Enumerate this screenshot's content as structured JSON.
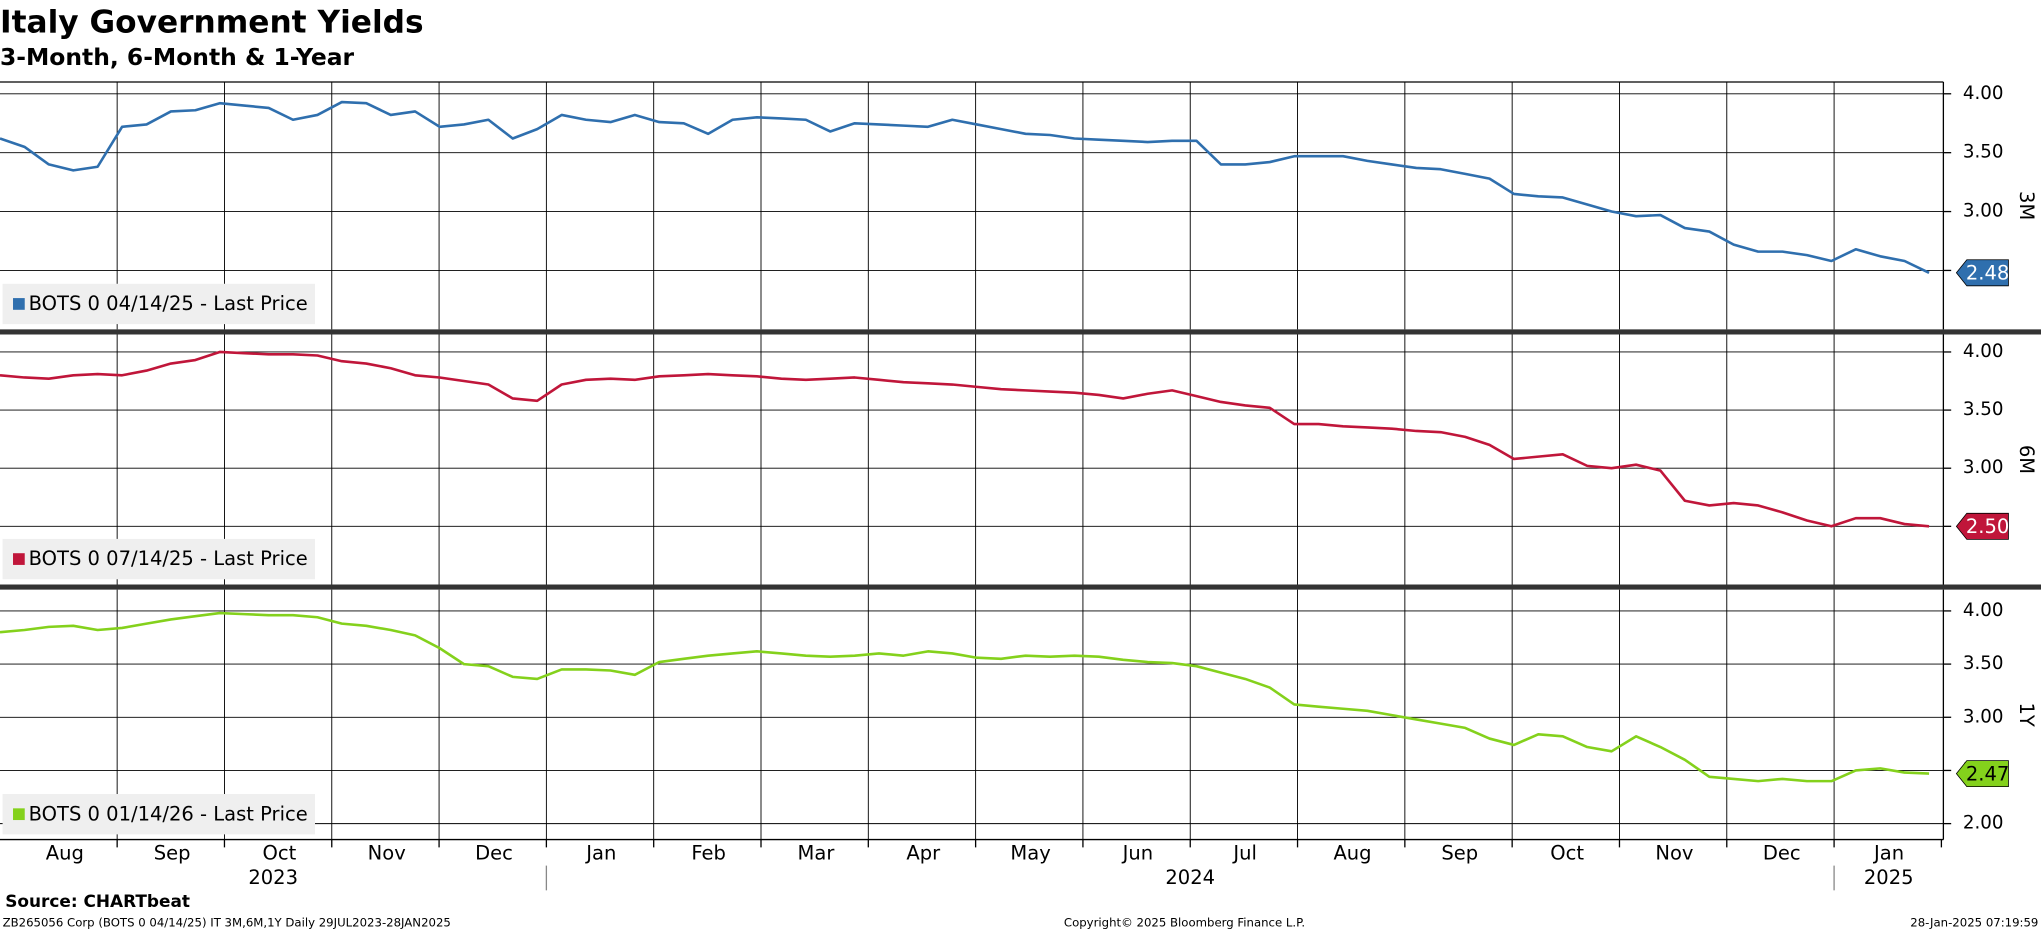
{
  "title": "Italy Government Yields",
  "subtitle": "3-Month, 6-Month & 1-Year",
  "x_axis": {
    "months": [
      "Aug",
      "Sep",
      "Oct",
      "Nov",
      "Dec",
      "Jan",
      "Feb",
      "Mar",
      "Apr",
      "May",
      "Jun",
      "Jul",
      "Aug",
      "Sep",
      "Oct",
      "Nov",
      "Dec",
      "Jan"
    ],
    "years": [
      "2023",
      "2024",
      "2025"
    ]
  },
  "chart_data": [
    {
      "type": "line",
      "axis_label": "3M",
      "last_label": "2.48",
      "ylim": [
        2.0,
        4.1
      ],
      "yticks": [
        {
          "value": 4,
          "label": "4.00"
        },
        {
          "value": 3.5,
          "label": "3.50"
        },
        {
          "value": 3,
          "label": "3.00"
        },
        {
          "value": 2.5,
          "label": "2.50"
        }
      ],
      "grid": true,
      "legend": "lower left",
      "series": [
        {
          "name": "BOTS 0 04/14/25 - Last Price",
          "color": "#2f6fae",
          "values": [
            3.62,
            3.55,
            3.4,
            3.35,
            3.38,
            3.72,
            3.74,
            3.85,
            3.86,
            3.92,
            3.9,
            3.88,
            3.78,
            3.82,
            3.93,
            3.92,
            3.82,
            3.85,
            3.72,
            3.74,
            3.78,
            3.62,
            3.7,
            3.82,
            3.78,
            3.76,
            3.82,
            3.76,
            3.75,
            3.66,
            3.78,
            3.8,
            3.79,
            3.78,
            3.68,
            3.75,
            3.74,
            3.73,
            3.72,
            3.78,
            3.74,
            3.7,
            3.66,
            3.65,
            3.62,
            3.61,
            3.6,
            3.59,
            3.6,
            3.6,
            3.4,
            3.4,
            3.42,
            3.47,
            3.47,
            3.47,
            3.43,
            3.4,
            3.37,
            3.36,
            3.32,
            3.28,
            3.15,
            3.13,
            3.12,
            3.06,
            3.0,
            2.96,
            2.97,
            2.86,
            2.83,
            2.72,
            2.66,
            2.66,
            2.63,
            2.58,
            2.68,
            2.62,
            2.58,
            2.48
          ]
        }
      ]
    },
    {
      "type": "line",
      "axis_label": "6M",
      "last_label": "2.50",
      "ylim": [
        2.0,
        4.15
      ],
      "yticks": [
        {
          "value": 4,
          "label": "4.00"
        },
        {
          "value": 3.5,
          "label": "3.50"
        },
        {
          "value": 3,
          "label": "3.00"
        },
        {
          "value": 2.5,
          "label": "2.50"
        }
      ],
      "grid": true,
      "legend": "lower left",
      "series": [
        {
          "name": "BOTS 0 07/14/25 - Last Price",
          "color": "#c0163a",
          "values": [
            3.8,
            3.78,
            3.77,
            3.8,
            3.81,
            3.8,
            3.84,
            3.9,
            3.93,
            4.0,
            3.99,
            3.98,
            3.98,
            3.97,
            3.92,
            3.9,
            3.86,
            3.8,
            3.78,
            3.75,
            3.72,
            3.6,
            3.58,
            3.72,
            3.76,
            3.77,
            3.76,
            3.79,
            3.8,
            3.81,
            3.8,
            3.79,
            3.77,
            3.76,
            3.77,
            3.78,
            3.76,
            3.74,
            3.73,
            3.72,
            3.7,
            3.68,
            3.67,
            3.66,
            3.65,
            3.63,
            3.6,
            3.64,
            3.67,
            3.62,
            3.57,
            3.54,
            3.52,
            3.38,
            3.38,
            3.36,
            3.35,
            3.34,
            3.32,
            3.31,
            3.27,
            3.2,
            3.08,
            3.1,
            3.12,
            3.02,
            3.0,
            3.03,
            2.98,
            2.72,
            2.68,
            2.7,
            2.68,
            2.62,
            2.55,
            2.5,
            2.57,
            2.57,
            2.52,
            2.5
          ]
        }
      ]
    },
    {
      "type": "line",
      "axis_label": "1Y",
      "last_label": "2.47",
      "ylim": [
        1.85,
        4.2
      ],
      "yticks": [
        {
          "value": 4,
          "label": "4.00"
        },
        {
          "value": 3.5,
          "label": "3.50"
        },
        {
          "value": 3,
          "label": "3.00"
        },
        {
          "value": 2.5,
          "label": "2.50"
        },
        {
          "value": 2,
          "label": "2.00"
        }
      ],
      "grid": true,
      "legend": "lower left",
      "series": [
        {
          "name": "BOTS 0 01/14/26 - Last Price",
          "color": "#84d11c",
          "values": [
            3.8,
            3.82,
            3.85,
            3.86,
            3.82,
            3.84,
            3.88,
            3.92,
            3.95,
            3.98,
            3.97,
            3.96,
            3.96,
            3.94,
            3.88,
            3.86,
            3.82,
            3.77,
            3.65,
            3.5,
            3.48,
            3.38,
            3.36,
            3.45,
            3.45,
            3.44,
            3.4,
            3.52,
            3.55,
            3.58,
            3.6,
            3.62,
            3.6,
            3.58,
            3.57,
            3.58,
            3.6,
            3.58,
            3.62,
            3.6,
            3.56,
            3.55,
            3.58,
            3.57,
            3.58,
            3.57,
            3.54,
            3.52,
            3.51,
            3.48,
            3.42,
            3.36,
            3.28,
            3.12,
            3.1,
            3.08,
            3.06,
            3.02,
            2.98,
            2.94,
            2.9,
            2.8,
            2.74,
            2.84,
            2.82,
            2.72,
            2.68,
            2.82,
            2.72,
            2.6,
            2.44,
            2.42,
            2.4,
            2.42,
            2.4,
            2.4,
            2.5,
            2.52,
            2.48,
            2.47
          ]
        }
      ]
    }
  ],
  "footer": {
    "source": "Source: CHARTbeat",
    "ticker": "ZB265056 Corp (BOTS 0 04/14/25) IT 3M,6M,1Y  Daily 29JUL2023-28JAN2025",
    "copyright": "Copyright© 2025 Bloomberg Finance L.P.",
    "timestamp": "28-Jan-2025 07:19:59"
  }
}
